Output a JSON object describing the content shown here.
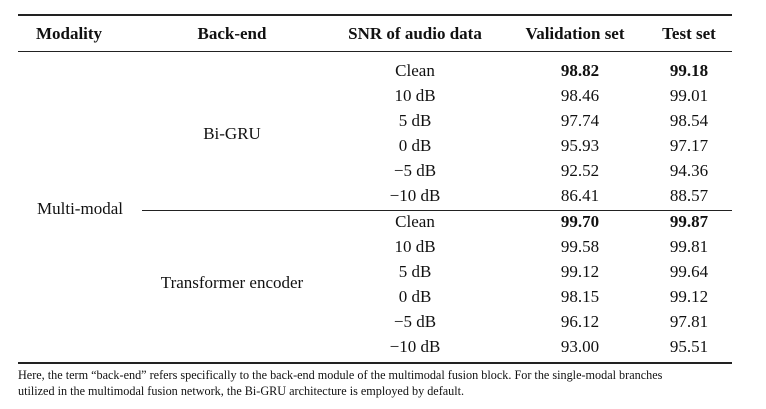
{
  "table": {
    "headers": [
      "Modality",
      "Back-end",
      "SNR of audio data",
      "Validation set",
      "Test set"
    ],
    "modality": "Multi-modal",
    "groups": [
      {
        "backend": "Bi-GRU",
        "rows": [
          {
            "snr": "Clean",
            "val": "98.82",
            "test": "99.18",
            "bold": true
          },
          {
            "snr": "10 dB",
            "val": "98.46",
            "test": "99.01",
            "bold": false
          },
          {
            "snr": "5 dB",
            "val": "97.74",
            "test": "98.54",
            "bold": false
          },
          {
            "snr": "0 dB",
            "val": "95.93",
            "test": "97.17",
            "bold": false
          },
          {
            "snr": "−5 dB",
            "val": "92.52",
            "test": "94.36",
            "bold": false
          },
          {
            "snr": "−10 dB",
            "val": "86.41",
            "test": "88.57",
            "bold": false
          }
        ]
      },
      {
        "backend": "Transformer encoder",
        "rows": [
          {
            "snr": "Clean",
            "val": "99.70",
            "test": "99.87",
            "bold": true
          },
          {
            "snr": "10 dB",
            "val": "99.58",
            "test": "99.81",
            "bold": false
          },
          {
            "snr": "5 dB",
            "val": "99.12",
            "test": "99.64",
            "bold": false
          },
          {
            "snr": "0 dB",
            "val": "98.15",
            "test": "99.12",
            "bold": false
          },
          {
            "snr": "−5 dB",
            "val": "96.12",
            "test": "97.81",
            "bold": false
          },
          {
            "snr": "−10 dB",
            "val": "93.00",
            "test": "95.51",
            "bold": false
          }
        ]
      }
    ]
  },
  "note": {
    "line1": "Here, the term “back-end” refers specifically to the back-end module of the multimodal fusion block. For the single-modal branches",
    "line2": "utilized in the multimodal fusion network, the Bi-GRU architecture is employed by default."
  }
}
